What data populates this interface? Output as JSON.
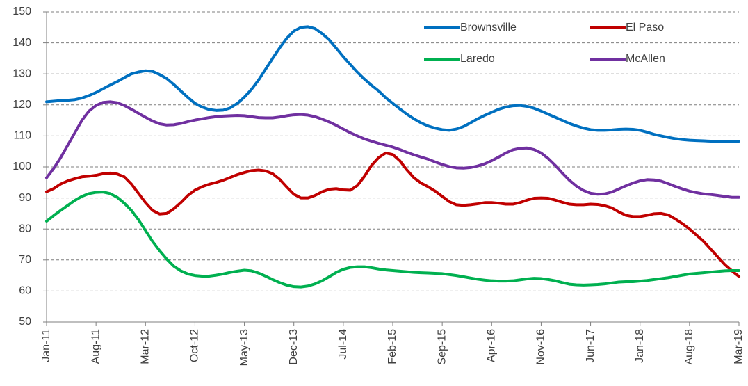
{
  "chart_data": {
    "type": "line",
    "categories": [
      "Jan-11",
      null,
      null,
      null,
      null,
      null,
      null,
      "Aug-11",
      null,
      null,
      null,
      null,
      null,
      null,
      "Mar-12",
      null,
      null,
      null,
      null,
      null,
      null,
      "Oct-12",
      null,
      null,
      null,
      null,
      null,
      null,
      "May-13",
      null,
      null,
      null,
      null,
      null,
      null,
      "Dec-13",
      null,
      null,
      null,
      null,
      null,
      null,
      "Jul-14",
      null,
      null,
      null,
      null,
      null,
      null,
      "Feb-15",
      null,
      null,
      null,
      null,
      null,
      null,
      "Sep-15",
      null,
      null,
      null,
      null,
      null,
      null,
      "Apr-16",
      null,
      null,
      null,
      null,
      null,
      null,
      "Nov-16",
      null,
      null,
      null,
      null,
      null,
      null,
      "Jun-17",
      null,
      null,
      null,
      null,
      null,
      null,
      "Jan-18",
      null,
      null,
      null,
      null,
      null,
      null,
      "Aug-18",
      null,
      null,
      null,
      null,
      null,
      null,
      "Mar-19"
    ],
    "series": [
      {
        "name": "Brownsville",
        "color": "#0070c0",
        "values": [
          121,
          121.2,
          121.4,
          121.5,
          121.7,
          122.2,
          123,
          124,
          125.2,
          126.4,
          127.5,
          128.8,
          130,
          130.6,
          131,
          130.8,
          129.8,
          128.5,
          126.6,
          124.5,
          122.4,
          120.5,
          119.3,
          118.5,
          118.2,
          118.3,
          119,
          120.5,
          122.5,
          125,
          128,
          131.5,
          135,
          138.4,
          141.5,
          143.8,
          145,
          145.2,
          144.6,
          143,
          141,
          138.3,
          135.5,
          133,
          130.5,
          128.3,
          126.3,
          124.5,
          122.3,
          120.5,
          118.7,
          117,
          115.5,
          114.2,
          113.2,
          112.5,
          112,
          111.8,
          112.2,
          113,
          114.2,
          115.5,
          116.6,
          117.6,
          118.6,
          119.3,
          119.7,
          119.8,
          119.5,
          118.9,
          118,
          117,
          116,
          115,
          114,
          113.2,
          112.5,
          112,
          111.8,
          111.8,
          111.9,
          112.1,
          112.2,
          112.1,
          111.8,
          111.2,
          110.5,
          110,
          109.5,
          109.1,
          108.8,
          108.6,
          108.5,
          108.4,
          108.3,
          108.3,
          108.3,
          108.3,
          108.3
        ]
      },
      {
        "name": "El Paso",
        "color": "#c00000",
        "values": [
          92,
          93,
          94.5,
          95.5,
          96.2,
          96.8,
          97,
          97.3,
          97.8,
          98,
          97.7,
          96.8,
          94.5,
          91.5,
          88.5,
          86,
          84.8,
          85,
          86.5,
          88.5,
          90.8,
          92.5,
          93.6,
          94.4,
          95,
          95.7,
          96.6,
          97.5,
          98.2,
          98.8,
          99,
          98.7,
          97.8,
          96,
          93.5,
          91.2,
          90,
          90,
          90.8,
          92,
          92.8,
          93,
          92.6,
          92.5,
          94,
          97,
          100.5,
          103,
          104.5,
          104,
          102,
          99,
          96.5,
          94.8,
          93.6,
          92.2,
          90.5,
          88.8,
          87.8,
          87.6,
          87.8,
          88.1,
          88.5,
          88.5,
          88.3,
          88,
          88,
          88.5,
          89.3,
          89.9,
          90,
          89.9,
          89.3,
          88.6,
          88,
          87.8,
          87.8,
          88,
          87.9,
          87.5,
          86.8,
          85.5,
          84.4,
          84,
          84,
          84.4,
          84.9,
          85,
          84.5,
          83.2,
          81.7,
          80,
          78,
          76,
          73.5,
          71,
          68.5,
          66.5,
          64.7
        ]
      },
      {
        "name": "Laredo",
        "color": "#00b050",
        "values": [
          82.5,
          84.3,
          86,
          87.6,
          89.2,
          90.5,
          91.4,
          91.8,
          91.9,
          91.4,
          90.2,
          88.3,
          86,
          83,
          79.5,
          76,
          73,
          70.3,
          68,
          66.5,
          65.5,
          65,
          64.8,
          64.8,
          65.1,
          65.5,
          66,
          66.4,
          66.7,
          66.5,
          65.8,
          64.8,
          63.7,
          62.7,
          61.9,
          61.4,
          61.3,
          61.6,
          62.3,
          63.3,
          64.6,
          66,
          67,
          67.6,
          67.8,
          67.8,
          67.5,
          67.1,
          66.8,
          66.6,
          66.4,
          66.2,
          66,
          65.9,
          65.8,
          65.7,
          65.6,
          65.3,
          65,
          64.6,
          64.2,
          63.8,
          63.5,
          63.3,
          63.2,
          63.2,
          63.3,
          63.6,
          63.9,
          64.1,
          64,
          63.7,
          63.3,
          62.7,
          62.2,
          62,
          61.9,
          62,
          62.1,
          62.3,
          62.6,
          62.9,
          63,
          63,
          63.2,
          63.4,
          63.7,
          64,
          64.3,
          64.7,
          65.1,
          65.5,
          65.7,
          65.9,
          66.1,
          66.3,
          66.5,
          66.6,
          66.6
        ]
      },
      {
        "name": "McAllen",
        "color": "#7030a0",
        "values": [
          96.5,
          99.5,
          103,
          107,
          111,
          115,
          118,
          119.8,
          120.8,
          121,
          120.7,
          119.8,
          118.6,
          117.3,
          116,
          114.8,
          113.9,
          113.5,
          113.6,
          114,
          114.6,
          115.1,
          115.5,
          115.9,
          116.2,
          116.4,
          116.5,
          116.6,
          116.5,
          116.2,
          115.9,
          115.8,
          115.8,
          116.1,
          116.5,
          116.8,
          116.9,
          116.7,
          116.2,
          115.4,
          114.5,
          113.4,
          112.2,
          111,
          110,
          109,
          108.3,
          107.6,
          107,
          106.4,
          105.6,
          104.7,
          103.9,
          103.2,
          102.5,
          101.6,
          100.8,
          100.1,
          99.7,
          99.6,
          99.8,
          100.3,
          101,
          102,
          103.2,
          104.5,
          105.5,
          106,
          106.1,
          105.6,
          104.5,
          102.7,
          100.5,
          98,
          95.7,
          93.8,
          92.4,
          91.5,
          91.2,
          91.3,
          91.9,
          92.9,
          93.9,
          94.8,
          95.5,
          95.9,
          95.8,
          95.4,
          94.6,
          93.7,
          92.9,
          92.2,
          91.7,
          91.3,
          91.1,
          90.8,
          90.5,
          90.2,
          90.2
        ]
      }
    ],
    "ylim": [
      50,
      150
    ],
    "yticks": [
      50,
      60,
      70,
      80,
      90,
      100,
      110,
      120,
      130,
      140,
      150
    ],
    "grid": true,
    "legend": "upper right"
  }
}
